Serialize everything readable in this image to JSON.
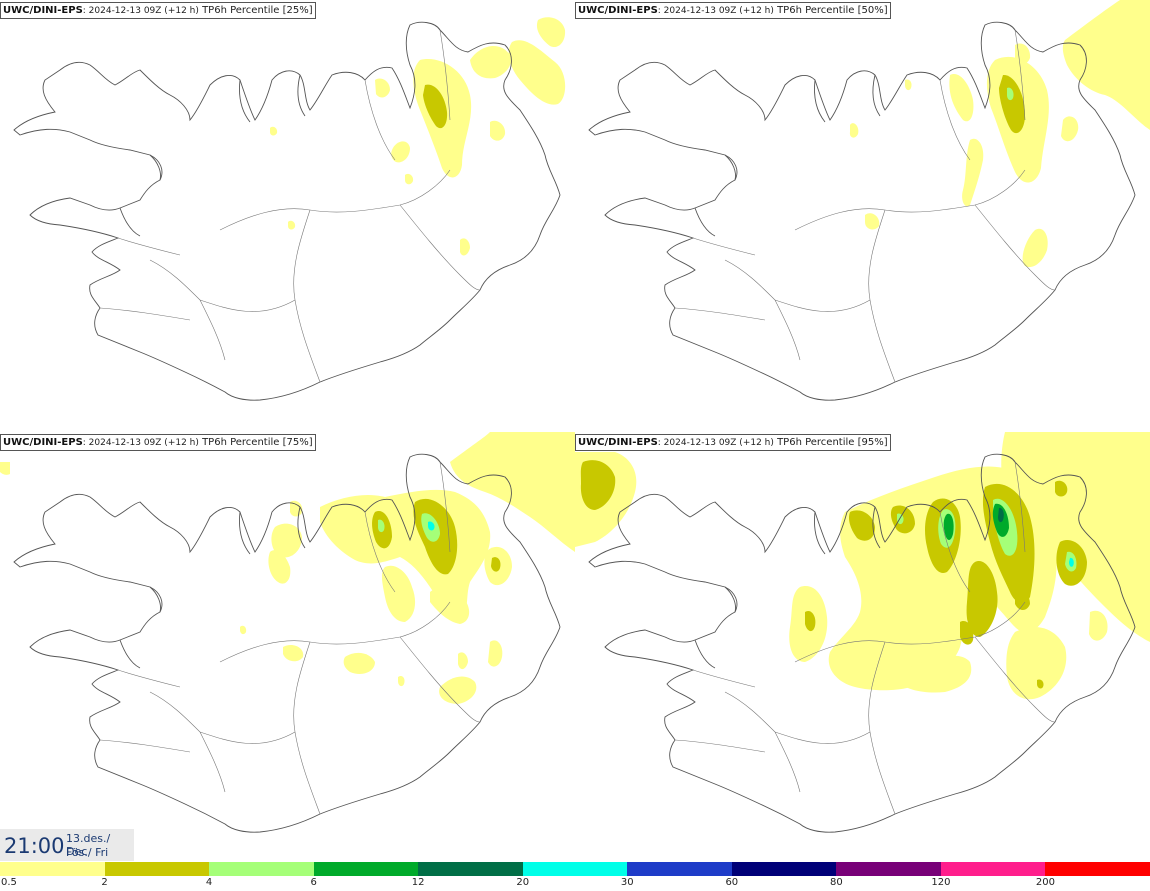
{
  "panels": [
    {
      "model": "UWC/DINI-EPS",
      "run": ": 2024-12-13 09Z (+12 h)",
      "field": " TP6h Percentile [25%]"
    },
    {
      "model": "UWC/DINI-EPS",
      "run": ": 2024-12-13 09Z (+12 h)",
      "field": " TP6h Percentile [50%]"
    },
    {
      "model": "UWC/DINI-EPS",
      "run": ": 2024-12-13 09Z (+12 h)",
      "field": " TP6h Percentile [75%]"
    },
    {
      "model": "UWC/DINI-EPS",
      "run": ": 2024-12-13 09Z (+12 h)",
      "field": " TP6h Percentile [95%]"
    }
  ],
  "valid_time": {
    "clock": "21:00",
    "date_line1": "13.des./ Dec",
    "date_line2": "Fös./ Fri"
  },
  "legend": {
    "labels": [
      "0.5",
      "2",
      "4",
      "6",
      "12",
      "20",
      "30",
      "60",
      "80",
      "120",
      "200"
    ],
    "colors": [
      "#ffff8c",
      "#c8c800",
      "#a5ff78",
      "#00aa2a",
      "#006e46",
      "#00ffe8",
      "#1e3cc8",
      "#000078",
      "#780078",
      "#ff1e8c",
      "#ff0000"
    ]
  }
}
